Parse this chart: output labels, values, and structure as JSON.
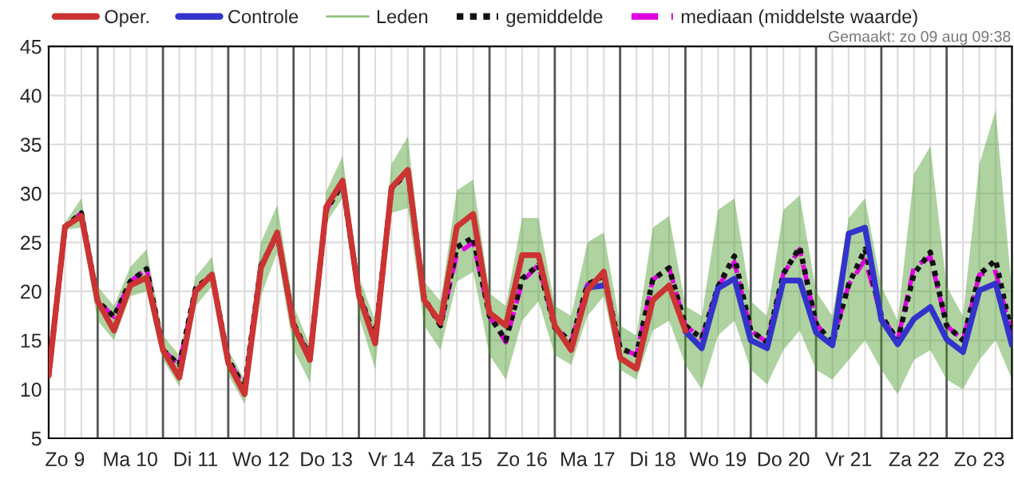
{
  "chart_data": {
    "type": "line",
    "categories": [
      null,
      "Zo 9",
      null,
      null,
      null,
      "Ma 10",
      null,
      null,
      null,
      "Di 11",
      null,
      null,
      null,
      "Wo 12",
      null,
      null,
      null,
      "Do 13",
      null,
      null,
      null,
      "Vr 14",
      null,
      null,
      null,
      "Za 15",
      null,
      null,
      null,
      "Zo 16",
      null,
      null,
      null,
      "Ma 17",
      null,
      null,
      null,
      "Di 18",
      null,
      null,
      null,
      "Wo 19",
      null,
      null,
      null,
      "Do 20",
      null,
      null,
      null,
      "Vr 21",
      null,
      null,
      null,
      "Za 22",
      null,
      null,
      null,
      "Zo 23",
      null,
      null
    ],
    "series": [
      {
        "name": "Oper.",
        "color": "#cc3333",
        "line_style": "solid",
        "values": [
          11.4,
          26.6,
          27.7,
          19.0,
          16.0,
          20.6,
          21.4,
          14.0,
          11.2,
          20.0,
          21.7,
          12.7,
          9.5,
          22.4,
          26.0,
          16.5,
          13.0,
          28.6,
          31.3,
          19.6,
          14.7,
          30.6,
          32.4,
          19.1,
          16.8,
          26.6,
          27.9,
          17.8,
          16.5,
          23.7,
          23.7,
          16.5,
          14.0,
          20.1,
          22.0,
          13.2,
          12.1,
          19.1,
          20.6,
          16.0,
          null,
          null,
          null,
          null,
          null,
          null,
          null,
          null,
          null,
          null,
          null,
          null,
          null,
          null,
          null,
          null,
          null,
          null,
          null,
          null
        ]
      },
      {
        "name": "Controle",
        "color": "#3333cc",
        "line_style": "solid",
        "values": [
          null,
          null,
          null,
          null,
          null,
          null,
          null,
          null,
          null,
          null,
          null,
          null,
          null,
          null,
          null,
          null,
          null,
          null,
          null,
          null,
          null,
          null,
          null,
          null,
          null,
          null,
          null,
          null,
          null,
          null,
          null,
          null,
          null,
          20.4,
          20.6,
          null,
          null,
          null,
          null,
          15.9,
          14.2,
          20.3,
          21.3,
          15.0,
          14.2,
          21.1,
          21.1,
          15.8,
          14.5,
          25.9,
          26.5,
          17.1,
          14.6,
          17.2,
          18.4,
          15.1,
          13.8,
          20.1,
          20.8,
          14.5
        ]
      },
      {
        "name": "Leden",
        "color": "#4c9e2c",
        "line_style": "solid",
        "values": [
          null,
          null,
          null,
          null,
          null,
          null,
          null,
          null,
          null,
          null,
          null,
          null,
          null,
          null,
          null,
          null,
          null,
          null,
          null,
          null,
          null,
          null,
          null,
          null,
          null,
          null,
          null,
          null,
          null,
          null,
          null,
          null,
          null,
          null,
          null,
          null,
          null,
          null,
          null,
          null,
          null,
          null,
          null,
          null,
          null,
          null,
          null,
          null,
          null,
          null,
          null,
          null,
          null,
          null,
          null,
          null,
          null,
          null,
          null,
          null
        ],
        "lower": [
          11,
          26.3,
          26.5,
          17,
          15,
          19.5,
          20,
          13,
          10.3,
          18.5,
          20.5,
          11.5,
          8.5,
          19.5,
          24,
          14,
          10.7,
          27,
          29.5,
          17.5,
          12,
          28,
          28.5,
          16.5,
          14,
          21,
          22,
          13.5,
          11,
          17,
          19,
          13.5,
          12.5,
          17.5,
          19.5,
          12,
          11,
          16,
          17,
          12.5,
          10,
          15.5,
          17,
          12,
          10.5,
          14,
          16,
          12,
          11,
          13,
          15,
          12,
          9.5,
          13,
          14,
          11,
          10,
          13,
          15,
          11
        ],
        "upper": [
          12,
          27,
          29.5,
          20.5,
          18.5,
          22.5,
          24.3,
          15.5,
          13.5,
          21.5,
          23.5,
          14,
          11,
          25,
          28.8,
          18.5,
          14.5,
          30.2,
          33.8,
          21.5,
          17,
          33,
          35.8,
          21,
          19,
          30.3,
          31.4,
          19.8,
          18.5,
          27.5,
          27.5,
          18.5,
          17.5,
          25,
          26,
          16.5,
          15.5,
          26.5,
          27.7,
          18.5,
          17.5,
          28.3,
          29.5,
          19,
          17.5,
          28.3,
          29.8,
          20,
          17.5,
          27.5,
          29.5,
          20.5,
          17,
          32,
          34.8,
          20.5,
          17.5,
          33,
          38.5,
          20
        ]
      },
      {
        "name": "gemiddelde",
        "color": "#111111",
        "line_style": "dotted",
        "values": [
          11.4,
          26.6,
          28.0,
          19.0,
          17.4,
          21.0,
          22.3,
          14.0,
          12.5,
          20.3,
          21.7,
          13.0,
          10.2,
          22.6,
          25.8,
          16.7,
          13.3,
          28.3,
          31.0,
          19.8,
          15.2,
          30.5,
          32.2,
          19.3,
          16.5,
          24.5,
          25.5,
          17.5,
          15.0,
          21.3,
          22.7,
          16.3,
          14.8,
          20.7,
          21.6,
          14.2,
          13.5,
          21.2,
          22.4,
          16.5,
          15.2,
          20.5,
          23.6,
          16.0,
          14.8,
          21.8,
          24.5,
          16.7,
          14.7,
          20.7,
          24.3,
          17.5,
          15.0,
          21.8,
          24.0,
          16.5,
          15.0,
          21.7,
          23.2,
          15.5
        ]
      },
      {
        "name": "mediaan (middelste waarde)",
        "color": "#e000e0",
        "line_style": "dashed",
        "values": [
          11.4,
          26.6,
          28.0,
          19.0,
          17.4,
          21.0,
          22.3,
          14.0,
          12.5,
          20.3,
          21.7,
          13.0,
          10.2,
          22.6,
          25.8,
          16.7,
          13.3,
          28.3,
          31.0,
          19.8,
          15.2,
          30.5,
          32.2,
          19.3,
          16.5,
          23.8,
          25.0,
          17.5,
          14.8,
          21.0,
          22.7,
          16.3,
          14.8,
          20.7,
          21.6,
          14.2,
          13.5,
          21.2,
          22.4,
          16.5,
          15.2,
          20.5,
          23.0,
          16.0,
          14.8,
          21.8,
          24.3,
          16.7,
          14.7,
          20.7,
          23.2,
          17.5,
          15.0,
          22.5,
          23.5,
          16.5,
          15.0,
          21.7,
          22.0,
          15.5
        ]
      }
    ],
    "ylim": [
      5,
      45
    ],
    "yticks": [
      5,
      10,
      15,
      20,
      25,
      30,
      35,
      40,
      45
    ],
    "grid": true,
    "legend": "top",
    "annotations": [
      "Gemaakt: zo 09 aug 09:38"
    ]
  }
}
